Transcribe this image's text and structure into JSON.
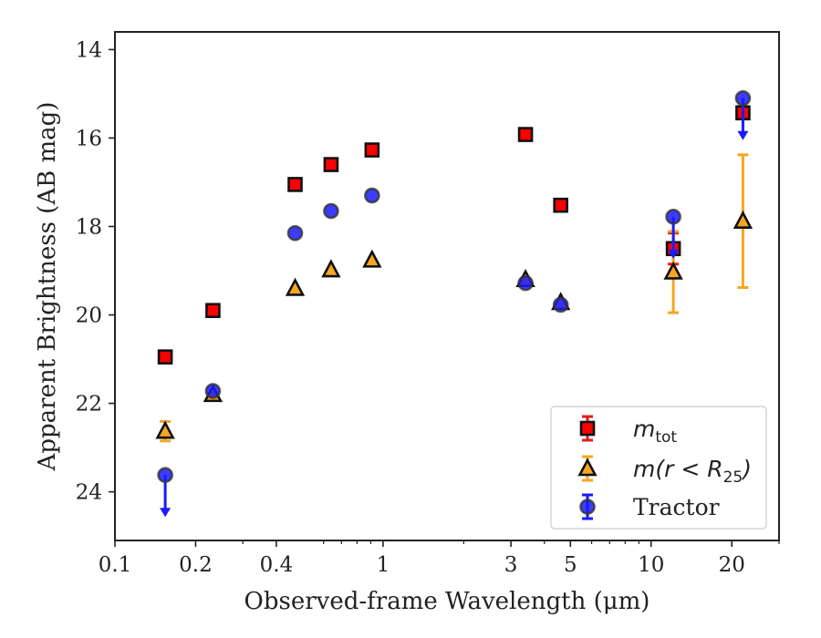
{
  "chart_data": {
    "type": "scatter",
    "title": "",
    "xlabel": "Observed-frame Wavelength (μm)",
    "ylabel": "Apparent Brightness (AB mag)",
    "xscale": "log",
    "xlim": [
      0.1,
      30
    ],
    "ylim": [
      25.1,
      13.6
    ],
    "y_inverted": true,
    "grid": false,
    "legend_position": "bottom-right",
    "x_ticks": [
      0.1,
      0.2,
      0.4,
      1,
      3,
      5,
      10,
      20
    ],
    "x_tick_labels": [
      "0.1",
      "0.2",
      "0.4",
      "1",
      "3",
      "5",
      "10",
      "20"
    ],
    "y_ticks": [
      14,
      16,
      18,
      20,
      22,
      24
    ],
    "y_tick_labels": [
      "14",
      "16",
      "18",
      "20",
      "22",
      "24"
    ],
    "series": [
      {
        "key": "mtot",
        "name": "m_tot",
        "legend_main": "m",
        "legend_sub": "tot",
        "marker": "square",
        "color": "#ff0000",
        "errcolor": "#e41a1c",
        "points": [
          {
            "x": 0.154,
            "y": 20.95
          },
          {
            "x": 0.232,
            "y": 19.9
          },
          {
            "x": 0.47,
            "y": 17.05
          },
          {
            "x": 0.64,
            "y": 16.6
          },
          {
            "x": 0.91,
            "y": 16.27
          },
          {
            "x": 3.4,
            "y": 15.92
          },
          {
            "x": 4.6,
            "y": 17.52
          },
          {
            "x": 12.1,
            "y": 18.5,
            "err": 0.35
          },
          {
            "x": 22.0,
            "y": 15.43,
            "err": 0.1
          }
        ]
      },
      {
        "key": "mr25",
        "name": "m(r < R_25)",
        "legend_main": "m(r < R",
        "legend_sub": "25",
        "legend_tail": ")",
        "marker": "triangle",
        "color": "#f5a623",
        "errcolor": "#f5a623",
        "points": [
          {
            "x": 0.154,
            "y": 22.63,
            "err": 0.22
          },
          {
            "x": 0.232,
            "y": 21.8
          },
          {
            "x": 0.47,
            "y": 19.4
          },
          {
            "x": 0.64,
            "y": 18.98
          },
          {
            "x": 0.91,
            "y": 18.76
          },
          {
            "x": 3.4,
            "y": 19.2
          },
          {
            "x": 4.6,
            "y": 19.72
          },
          {
            "x": 12.1,
            "y": 19.03,
            "err": 0.92
          },
          {
            "x": 22.0,
            "y": 17.88,
            "err": 1.5
          }
        ]
      },
      {
        "key": "tractor",
        "name": "Tractor",
        "legend_main": "Tractor",
        "marker": "circle",
        "color": "#1a1aff",
        "errcolor": "#1a1aff",
        "points": [
          {
            "x": 0.154,
            "y": 23.62,
            "upper_limit": true
          },
          {
            "x": 0.232,
            "y": 21.72
          },
          {
            "x": 0.47,
            "y": 18.15
          },
          {
            "x": 0.64,
            "y": 17.65
          },
          {
            "x": 0.91,
            "y": 17.3
          },
          {
            "x": 3.4,
            "y": 19.28
          },
          {
            "x": 4.6,
            "y": 19.77
          },
          {
            "x": 12.1,
            "y": 17.78,
            "upper_limit": true
          },
          {
            "x": 22.0,
            "y": 15.1,
            "upper_limit": true
          }
        ]
      }
    ]
  }
}
